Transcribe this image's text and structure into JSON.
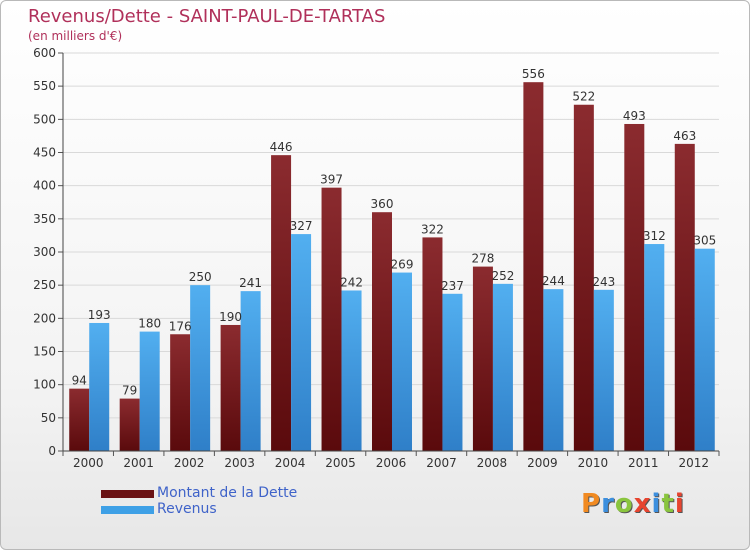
{
  "header": {
    "title": "Revenus/Dette - SAINT-PAUL-DE-TARTAS",
    "subtitle": "(en milliers d'€)"
  },
  "legend": {
    "items": [
      {
        "label": "Montant de la Dette",
        "color": "#7a1a1a"
      },
      {
        "label": "Revenus",
        "color": "#3ea0e6"
      }
    ]
  },
  "logo": {
    "text": "Proxiti",
    "colors": [
      "#f18a21",
      "#3c8fde",
      "#8ac53e",
      "#e7442f",
      "#3c8fde",
      "#8ac53e",
      "#e7442f"
    ]
  },
  "chart_data": {
    "type": "bar",
    "title": "Revenus/Dette - SAINT-PAUL-DE-TARTAS",
    "subtitle": "(en milliers d'€)",
    "categories": [
      "2000",
      "2001",
      "2002",
      "2003",
      "2004",
      "2005",
      "2006",
      "2007",
      "2008",
      "2009",
      "2010",
      "2011",
      "2012"
    ],
    "series": [
      {
        "name": "Montant de la Dette",
        "color": "#7a1a1a",
        "values": [
          94,
          79,
          176,
          190,
          446,
          397,
          360,
          322,
          278,
          556,
          522,
          493,
          463
        ]
      },
      {
        "name": "Revenus",
        "color": "#3ea0e6",
        "values": [
          193,
          180,
          250,
          241,
          327,
          242,
          269,
          237,
          252,
          244,
          243,
          312,
          305
        ]
      }
    ],
    "ylim": [
      0,
      600
    ],
    "yticks": [
      0,
      50,
      100,
      150,
      200,
      250,
      300,
      350,
      400,
      450,
      500,
      550,
      600
    ],
    "grid": true,
    "legend_position": "bottom-left"
  }
}
